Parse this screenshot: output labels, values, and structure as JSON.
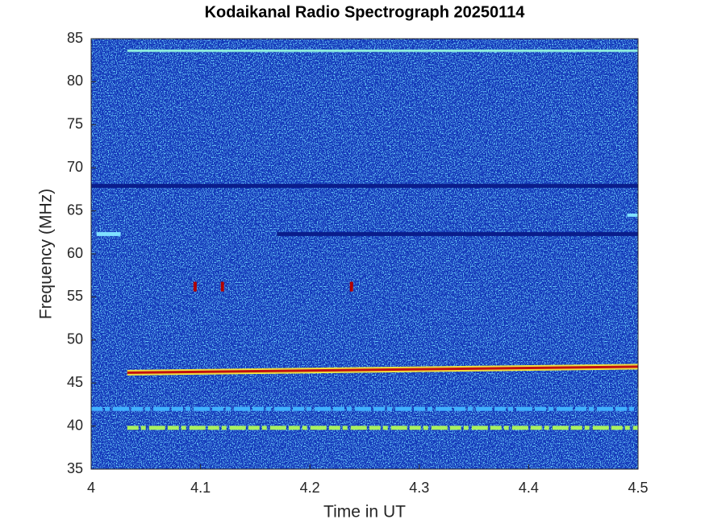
{
  "chart_data": {
    "type": "spectrogram",
    "title": "Kodaikanal Radio Spectrograph  20250114",
    "xlabel": "Time in UT",
    "ylabel": "Frequency (MHz)",
    "xlim": [
      4,
      4.5
    ],
    "ylim": [
      35,
      85
    ],
    "xticks": [
      4,
      4.1,
      4.2,
      4.3,
      4.4,
      4.5
    ],
    "yticks": [
      35,
      40,
      45,
      50,
      55,
      60,
      65,
      70,
      75,
      80,
      85
    ],
    "background_color": "#1236b8",
    "features": [
      {
        "color": "#8ff0e0",
        "width": 3,
        "x": [
          4.033,
          4.5
        ],
        "y": [
          83.6,
          83.6
        ]
      },
      {
        "color": "#0a1d8c",
        "width": 5,
        "x": [
          4,
          4.5
        ],
        "y": [
          67.9,
          67.9
        ]
      },
      {
        "color": "#0a1d8c",
        "width": 5,
        "x": [
          4.17,
          4.5
        ],
        "y": [
          62.3,
          62.3
        ]
      },
      {
        "color": "#7fe0ff",
        "width": 5,
        "x": [
          4.005,
          4.027
        ],
        "y": [
          62.3,
          62.3
        ]
      },
      {
        "color": "#7fe0ff",
        "width": 4,
        "x": [
          4.49,
          4.5
        ],
        "y": [
          64.5,
          64.5
        ]
      },
      {
        "color": "#f0e040",
        "width": 7,
        "x": [
          4.033,
          4.5
        ],
        "y": [
          46.2,
          46.9
        ]
      },
      {
        "color": "#c01010",
        "width": 3,
        "x": [
          4.033,
          4.5
        ],
        "y": [
          46.2,
          46.9
        ]
      },
      {
        "color": "#40b0ff",
        "width": 5,
        "x": [
          4,
          4.5
        ],
        "y": [
          42,
          42
        ]
      },
      {
        "color": "#a8f060",
        "width": 5,
        "x": [
          4.033,
          4.5
        ],
        "y": [
          39.8,
          39.8
        ]
      }
    ],
    "bursts": {
      "color": "#b00000",
      "x": [
        4.095,
        4.12,
        4.238
      ],
      "y": [
        56.2,
        56.2,
        56.2
      ]
    }
  }
}
